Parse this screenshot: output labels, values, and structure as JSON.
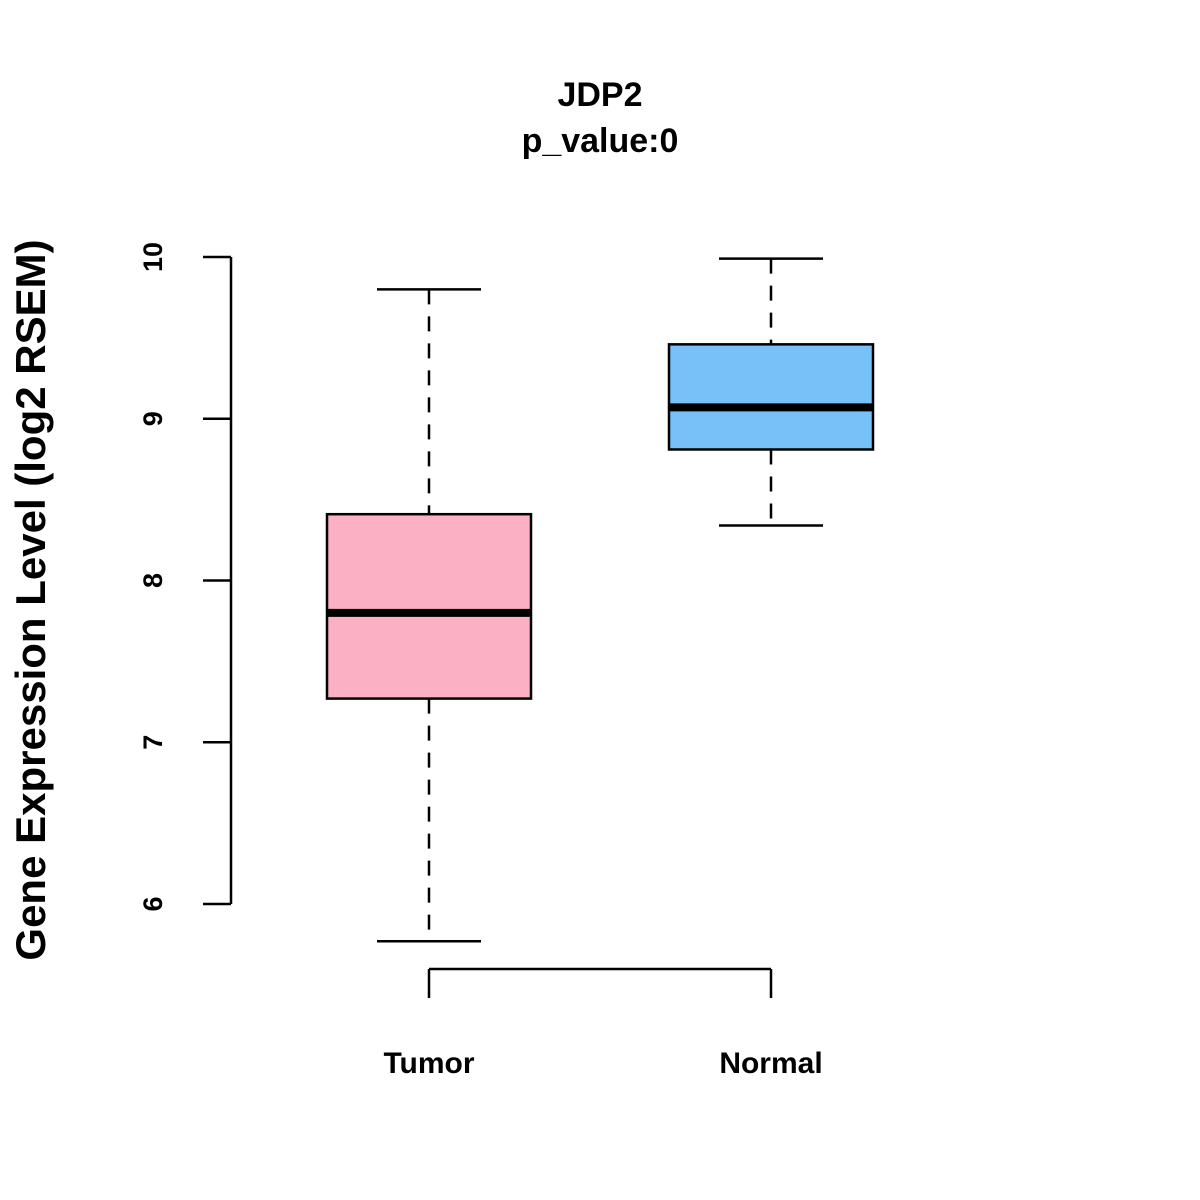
{
  "chart_data": {
    "type": "box",
    "title": "JDP2",
    "subtitle": "p_value:0",
    "xlabel": "",
    "ylabel": "Gene Expression Level (log2 RSEM)",
    "ylim": [
      5.6,
      10.1
    ],
    "yticks": [
      6,
      7,
      8,
      9,
      10
    ],
    "ytick_labels": [
      "6",
      "7",
      "8",
      "9",
      "10"
    ],
    "categories": [
      "Tumor",
      "Normal"
    ],
    "grid": false,
    "series": [
      {
        "name": "Tumor",
        "color": "#FBB1C3",
        "whisker_low": 5.77,
        "q1": 7.27,
        "median": 7.8,
        "q3": 8.41,
        "whisker_high": 9.8
      },
      {
        "name": "Normal",
        "color": "#77C1F8",
        "whisker_low": 8.34,
        "q1": 8.81,
        "median": 9.07,
        "q3": 9.46,
        "whisker_high": 9.99
      }
    ]
  }
}
